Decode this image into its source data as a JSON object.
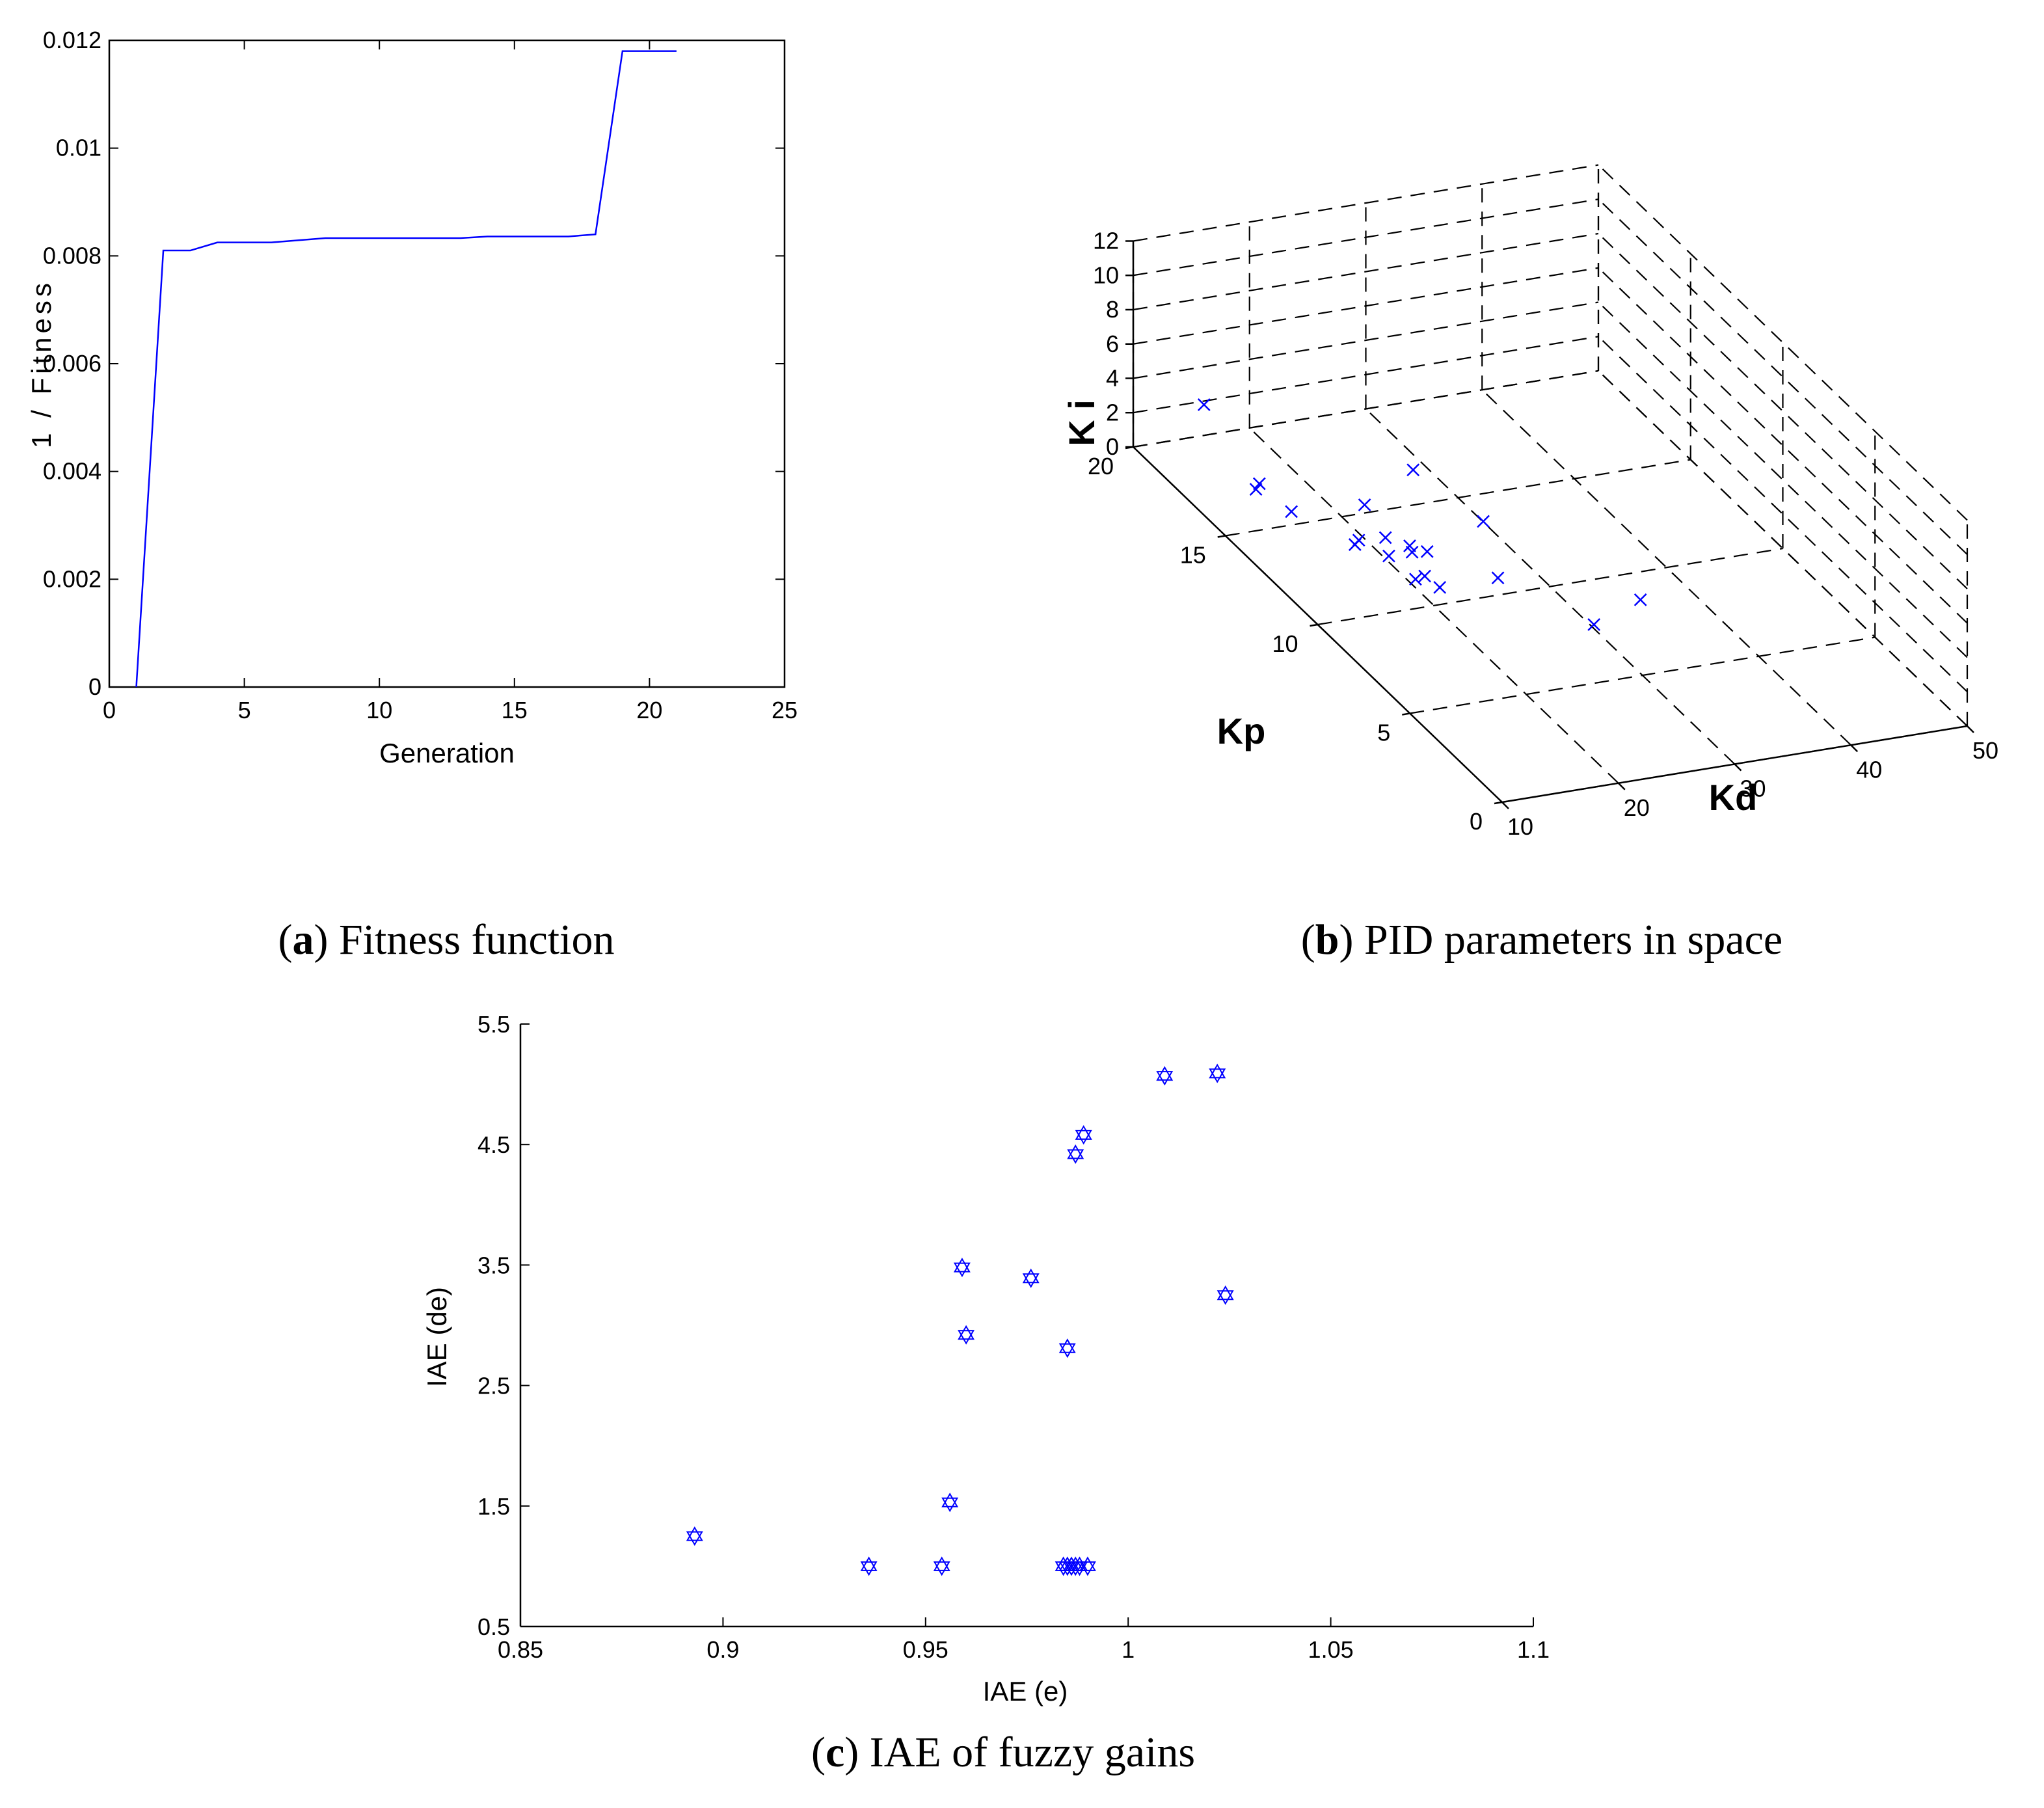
{
  "colors": {
    "series": "#0000ff",
    "axis": "#000000"
  },
  "chart_data": [
    {
      "id": "a",
      "type": "line",
      "caption": {
        "letter": "a",
        "text": "Fitness function"
      },
      "xlabel": "Generation",
      "ylabel": "1 / Fitness",
      "xlim": [
        0,
        25
      ],
      "ylim": [
        0,
        0.012
      ],
      "xticks": [
        0,
        5,
        10,
        15,
        20,
        25
      ],
      "yticks": [
        0,
        0.002,
        0.004,
        0.006,
        0.008,
        0.01,
        0.012
      ],
      "grid": false,
      "x": [
        1,
        2,
        3,
        4,
        6,
        8,
        13,
        14,
        17,
        18,
        19,
        21
      ],
      "y": [
        0,
        0.0081,
        0.0081,
        0.00825,
        0.00825,
        0.00833,
        0.00833,
        0.00836,
        0.00836,
        0.0084,
        0.0118,
        0.0118
      ]
    },
    {
      "id": "b",
      "type": "scatter",
      "projection": "3d",
      "caption": {
        "letter": "b",
        "text": "PID parameters in space"
      },
      "xlabel": "Kd",
      "ylabel": "Kp",
      "zlabel": "K i",
      "xlim": [
        10,
        50
      ],
      "ylim": [
        0,
        20
      ],
      "zlim": [
        0,
        12
      ],
      "xticks": [
        10,
        20,
        30,
        40,
        50
      ],
      "yticks": [
        0,
        5,
        10,
        15,
        20
      ],
      "zticks": [
        0,
        2,
        4,
        6,
        8,
        10,
        12
      ],
      "grid": true,
      "marker": "x",
      "points": [
        {
          "x": 14.5,
          "y": 19.0,
          "z": 3.0
        },
        {
          "x": 12.5,
          "y": 13.0,
          "z": 3.2
        },
        {
          "x": 14.0,
          "y": 10.5,
          "z": 3.7
        },
        {
          "x": 14.5,
          "y": 16.0,
          "z": 1.5
        },
        {
          "x": 15.0,
          "y": 16.5,
          "z": 0.6
        },
        {
          "x": 17.5,
          "y": 12.5,
          "z": 1.5
        },
        {
          "x": 18.0,
          "y": 12.5,
          "z": 3.5
        },
        {
          "x": 19.0,
          "y": 12.0,
          "z": 2.0
        },
        {
          "x": 18.5,
          "y": 11.5,
          "z": 1.5
        },
        {
          "x": 19.5,
          "y": 11.0,
          "z": 2.5
        },
        {
          "x": 20.5,
          "y": 11.5,
          "z": 1.5
        },
        {
          "x": 20.0,
          "y": 10.5,
          "z": 1.2
        },
        {
          "x": 20.0,
          "y": 11.0,
          "z": 0.5
        },
        {
          "x": 21.0,
          "y": 11.0,
          "z": 2.0
        },
        {
          "x": 20.5,
          "y": 10.0,
          "z": 1.0
        },
        {
          "x": 19.0,
          "y": 10.5,
          "z": 7.5
        },
        {
          "x": 25.5,
          "y": 10.0,
          "z": 1.0
        },
        {
          "x": 29.0,
          "y": 13.0,
          "z": 0.8
        },
        {
          "x": 29.0,
          "y": 7.0,
          "z": 1.0
        },
        {
          "x": 33.0,
          "y": 7.0,
          "z": 2.0
        }
      ]
    },
    {
      "id": "c",
      "type": "scatter",
      "caption": {
        "letter": "c",
        "text": "IAE of fuzzy gains"
      },
      "xlabel": "IAE (e)",
      "ylabel": "IAE (de)",
      "xlim": [
        0.85,
        1.1
      ],
      "ylim": [
        0.5,
        5.5
      ],
      "xticks": [
        0.85,
        0.9,
        0.95,
        1,
        1.05,
        1.1
      ],
      "xtick_labels": [
        "0.85",
        "0.9",
        "0.95",
        "1",
        "1.05",
        "1.1"
      ],
      "yticks": [
        0.5,
        1.5,
        2.5,
        3.5,
        4.5,
        5.5
      ],
      "grid": false,
      "marker": "hexagram",
      "x": [
        0.893,
        0.936,
        0.954,
        0.956,
        0.959,
        0.96,
        0.976,
        0.984,
        0.985,
        0.985,
        0.986,
        0.987,
        0.988,
        0.987,
        0.989,
        0.99,
        1.009,
        1.022,
        1.024
      ],
      "y": [
        1.25,
        1.0,
        1.0,
        1.53,
        3.48,
        2.92,
        3.39,
        1.0,
        2.81,
        1.0,
        1.0,
        1.0,
        1.0,
        4.42,
        4.58,
        1.0,
        5.07,
        5.09,
        3.25
      ]
    }
  ]
}
